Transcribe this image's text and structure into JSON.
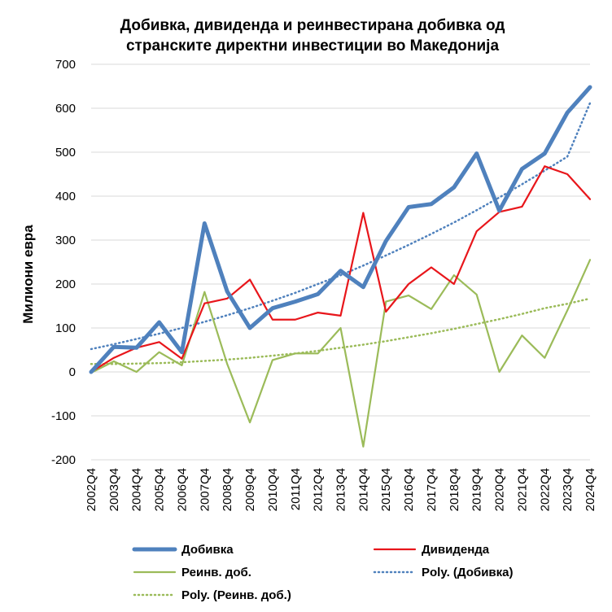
{
  "chart_data": {
    "type": "line",
    "title_lines": [
      "Добивка, дивиденда и реинвестирана добивка од",
      "странските директни инвестиции во Македонија"
    ],
    "ylabel": "Милиони евра",
    "xlabel": "",
    "ylim": [
      -200,
      700
    ],
    "yticks": [
      -200,
      -100,
      0,
      100,
      200,
      300,
      400,
      500,
      600,
      700
    ],
    "grid": "horizontal",
    "legend_position": "bottom",
    "categories": [
      "2002Q4",
      "2003Q4",
      "2004Q4",
      "2005Q4",
      "2006Q4",
      "2007Q4",
      "2008Q4",
      "2009Q4",
      "2010Q4",
      "2011Q4",
      "2012Q4",
      "2013Q4",
      "2014Q4",
      "2015Q4",
      "2016Q4",
      "2017Q4",
      "2018Q4",
      "2019Q4",
      "2020Q4",
      "2021Q4",
      "2022Q4",
      "2023Q4",
      "2024Q4"
    ],
    "series": [
      {
        "name": "Добивка",
        "color": "#4F81BD",
        "style": "solid-thick",
        "values": [
          0,
          57,
          55,
          113,
          45,
          338,
          183,
          100,
          145,
          160,
          177,
          230,
          193,
          298,
          375,
          382,
          420,
          497,
          367,
          462,
          497,
          590,
          648
        ]
      },
      {
        "name": "Дивиденда",
        "color": "#E8161B",
        "style": "solid",
        "values": [
          0,
          32,
          55,
          68,
          30,
          156,
          167,
          210,
          119,
          119,
          135,
          128,
          362,
          137,
          200,
          238,
          200,
          320,
          364,
          376,
          468,
          450,
          393
        ]
      },
      {
        "name": "Реинв. доб.",
        "color": "#9BBB59",
        "style": "solid",
        "values": [
          -2,
          24,
          0,
          45,
          15,
          182,
          18,
          -115,
          27,
          42,
          42,
          100,
          -170,
          160,
          174,
          143,
          220,
          176,
          0,
          83,
          32,
          140,
          255
        ]
      },
      {
        "name": "Poly. (Добивка)",
        "color": "#4F81BD",
        "style": "dotted",
        "values": [
          52,
          63,
          75,
          87,
          100,
          114,
          129,
          145,
          162,
          180,
          200,
          220,
          242,
          265,
          289,
          314,
          340,
          368,
          397,
          427,
          458,
          490,
          612
        ]
      },
      {
        "name": "Poly. (Реинв. доб.)",
        "color": "#9BBB59",
        "style": "dotted",
        "values": [
          18,
          18,
          19,
          20,
          22,
          25,
          28,
          32,
          37,
          42,
          48,
          55,
          62,
          70,
          79,
          88,
          98,
          109,
          120,
          132,
          145,
          155,
          167
        ]
      }
    ]
  }
}
